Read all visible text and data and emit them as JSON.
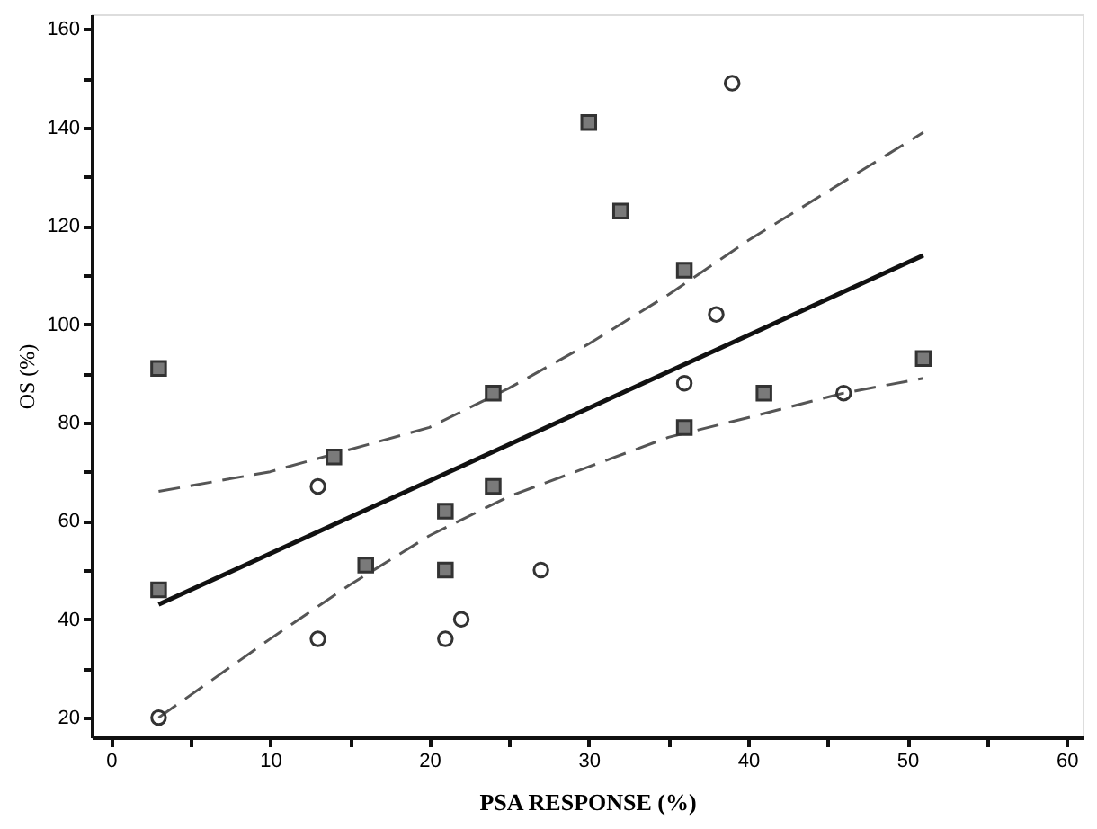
{
  "chart_data": {
    "type": "scatter",
    "xlabel": "PSA RESPONSE (%)",
    "ylabel": "OS (%)",
    "xlim": [
      -1.2,
      61
    ],
    "ylim": [
      16,
      163
    ],
    "xticks": [
      0,
      {
        "value": 5,
        "label": null
      },
      10,
      {
        "value": 15,
        "label": null
      },
      20,
      {
        "value": 25,
        "label": null
      },
      30,
      {
        "value": 35,
        "label": null
      },
      40,
      {
        "value": 45,
        "label": null
      },
      50,
      {
        "value": 55,
        "label": null
      },
      60
    ],
    "yticks": [
      20,
      {
        "value": 30,
        "label": null
      },
      40,
      {
        "value": 50,
        "label": null
      },
      60,
      {
        "value": 70,
        "label": null
      },
      80,
      {
        "value": 90,
        "label": null
      },
      100,
      {
        "value": 110,
        "label": null
      },
      120,
      {
        "value": 130,
        "label": null
      },
      140,
      {
        "value": 150,
        "label": null
      },
      160
    ],
    "grid": false,
    "series": [
      {
        "type": "line",
        "color": "#111111",
        "line_style": "solid",
        "marker": "none",
        "x": [
          3,
          51
        ],
        "values": [
          43,
          114
        ]
      },
      {
        "type": "line",
        "color": "#555555",
        "line_style": "dashed",
        "marker": "none",
        "x": [
          3,
          10,
          20,
          25,
          30,
          35,
          40,
          45,
          51
        ],
        "values": [
          66,
          70,
          79,
          87,
          96,
          106,
          117,
          127,
          139
        ]
      },
      {
        "type": "line",
        "color": "#555555",
        "line_style": "dashed",
        "marker": "none",
        "x": [
          3,
          10,
          15,
          20,
          25,
          30,
          35,
          40,
          46,
          51
        ],
        "values": [
          20,
          36,
          47,
          57,
          65,
          71,
          77,
          81,
          86,
          89
        ]
      },
      {
        "color": "#7a7a7a",
        "marker": "square",
        "x": [
          3,
          3,
          14,
          16,
          21,
          21,
          24,
          24,
          30,
          32,
          36,
          36,
          41,
          51
        ],
        "values": [
          91,
          46,
          73,
          51,
          62,
          50,
          67,
          86,
          141,
          123,
          111,
          79,
          86,
          93
        ]
      },
      {
        "color": "#333333",
        "marker": "circle",
        "x": [
          3,
          13,
          13,
          21,
          22,
          27,
          36,
          38,
          39,
          46
        ],
        "values": [
          20,
          67,
          36,
          36,
          40,
          50,
          88,
          102,
          149,
          86
        ]
      }
    ]
  }
}
